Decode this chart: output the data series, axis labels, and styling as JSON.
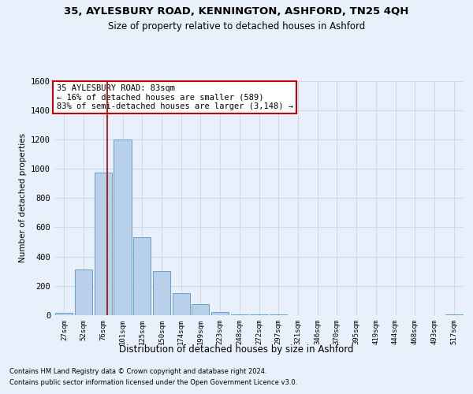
{
  "title1": "35, AYLESBURY ROAD, KENNINGTON, ASHFORD, TN25 4QH",
  "title2": "Size of property relative to detached houses in Ashford",
  "xlabel": "Distribution of detached houses by size in Ashford",
  "ylabel": "Number of detached properties",
  "footnote1": "Contains HM Land Registry data © Crown copyright and database right 2024.",
  "footnote2": "Contains public sector information licensed under the Open Government Licence v3.0.",
  "annotation_title": "35 AYLESBURY ROAD: 83sqm",
  "annotation_line1": "← 16% of detached houses are smaller (589)",
  "annotation_line2": "83% of semi-detached houses are larger (3,148) →",
  "bar_color": "#b8d0ea",
  "bar_edge_color": "#6aa0cc",
  "grid_color": "#ccdaeb",
  "background_color": "#e8f1fb",
  "vline_color": "#aa0000",
  "annotation_box_edge": "#cc0000",
  "categories": [
    "27sqm",
    "52sqm",
    "76sqm",
    "101sqm",
    "125sqm",
    "150sqm",
    "174sqm",
    "199sqm",
    "223sqm",
    "248sqm",
    "272sqm",
    "297sqm",
    "321sqm",
    "346sqm",
    "370sqm",
    "395sqm",
    "419sqm",
    "444sqm",
    "468sqm",
    "493sqm",
    "517sqm"
  ],
  "values": [
    15,
    310,
    975,
    1200,
    530,
    300,
    150,
    75,
    20,
    5,
    5,
    5,
    0,
    0,
    0,
    0,
    0,
    0,
    0,
    0,
    5
  ],
  "vline_x_pos": 2.2,
  "ylim_min": 0,
  "ylim_max": 1600,
  "yticks": [
    0,
    200,
    400,
    600,
    800,
    1000,
    1200,
    1400,
    1600
  ]
}
